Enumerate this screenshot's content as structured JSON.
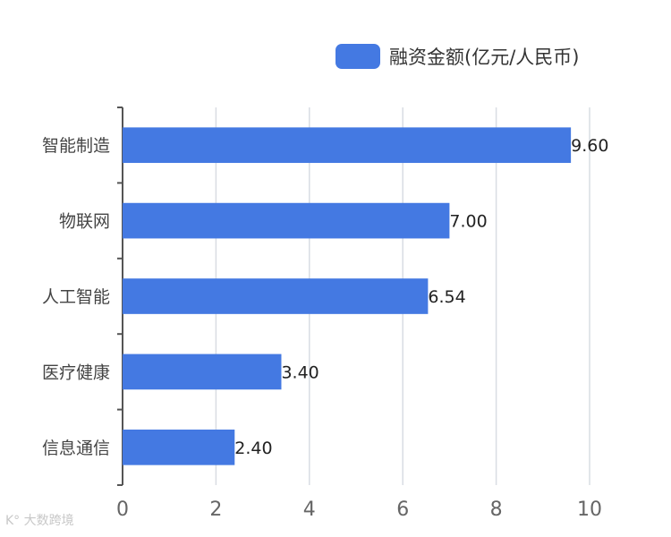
{
  "chart_data": {
    "type": "bar",
    "orientation": "horizontal",
    "categories": [
      "智能制造",
      "物联网",
      "人工智能",
      "医疗健康",
      "信息通信"
    ],
    "series": [
      {
        "name": "融资金额(亿元/人民币)",
        "values": [
          9.6,
          7.0,
          6.54,
          3.4,
          2.4
        ]
      }
    ],
    "value_labels": [
      "9.60",
      "7.00",
      "6.54",
      "3.40",
      "2.40"
    ],
    "xlim": [
      0,
      10
    ],
    "xticks": [
      "0",
      "2",
      "4",
      "6",
      "8",
      "10"
    ],
    "grid": "vertical",
    "legend_position": "top-right"
  },
  "colors": {
    "bar": "#4479e2",
    "grid": "#d9dde3",
    "axis": "#555555",
    "tick": "#666666"
  },
  "legend": {
    "label": "融资金额(亿元/人民币)"
  },
  "watermark": {
    "text": "K° 大数跨境"
  }
}
